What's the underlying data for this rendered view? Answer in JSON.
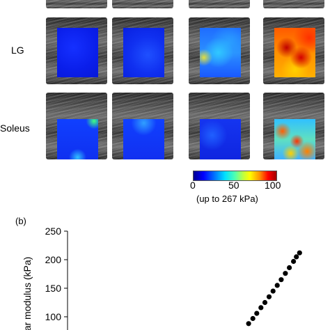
{
  "figure": {
    "rows": [
      {
        "label": "",
        "maps": [
          "low",
          "low",
          "low",
          "low"
        ]
      },
      {
        "label": "LG",
        "maps": [
          "low",
          "low",
          "medium",
          "high"
        ]
      },
      {
        "label": "Soleus",
        "maps": [
          "low",
          "low",
          "low",
          "high"
        ]
      }
    ],
    "colorbar": {
      "ticks": [
        "0",
        "50",
        "100"
      ],
      "note": "(up to 267 kPa)"
    },
    "panel_b_label": "(b)"
  },
  "chart_data": {
    "type": "scatter",
    "title": "",
    "xlabel": "",
    "ylabel": "ar modulus (kPa)",
    "yticks": [
      "100",
      "150",
      "200",
      "250"
    ],
    "ylim": [
      80,
      255
    ],
    "xlim": [
      0,
      1
    ],
    "series": [
      {
        "name": "",
        "points": [
          {
            "x": 0.69,
            "y": 88
          },
          {
            "x": 0.706,
            "y": 97
          },
          {
            "x": 0.721,
            "y": 106
          },
          {
            "x": 0.737,
            "y": 116
          },
          {
            "x": 0.752,
            "y": 125
          },
          {
            "x": 0.768,
            "y": 135
          },
          {
            "x": 0.783,
            "y": 145
          },
          {
            "x": 0.799,
            "y": 155
          },
          {
            "x": 0.814,
            "y": 165
          },
          {
            "x": 0.83,
            "y": 176
          },
          {
            "x": 0.845,
            "y": 186
          },
          {
            "x": 0.861,
            "y": 197
          },
          {
            "x": 0.872,
            "y": 205
          },
          {
            "x": 0.884,
            "y": 212
          }
        ]
      }
    ]
  }
}
